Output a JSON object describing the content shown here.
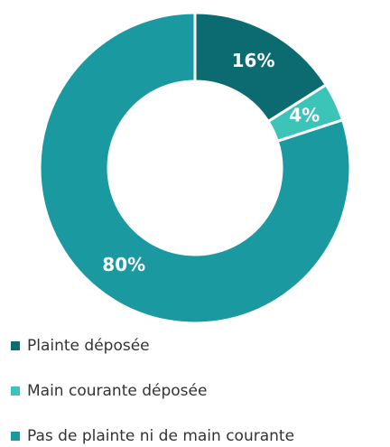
{
  "chart_data": {
    "type": "pie",
    "donut": true,
    "categories": [
      "Plainte déposée",
      "Main courante déposée",
      "Pas de plainte ni de main courante"
    ],
    "values": [
      16,
      4,
      80
    ],
    "value_labels": [
      "16%",
      "4%",
      "80%"
    ],
    "colors": [
      "#0b6b70",
      "#3cc4b9",
      "#1a9aa0"
    ],
    "legend": "bottom-left"
  }
}
